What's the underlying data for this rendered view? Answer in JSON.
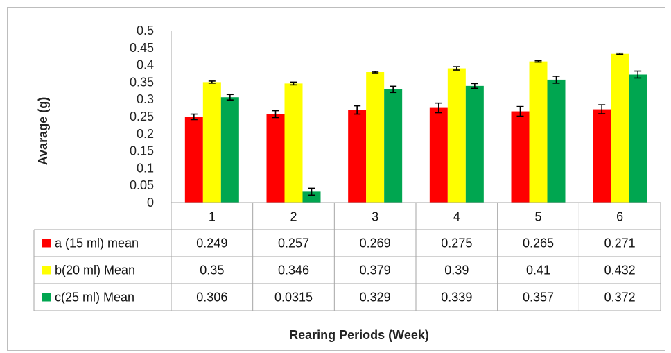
{
  "chart_data": {
    "type": "bar",
    "title": "",
    "xlabel": "Rearing Periods (Week)",
    "ylabel": "Avarage (g)",
    "ylim": [
      0,
      0.5
    ],
    "yticks": [
      "0",
      "0.05",
      "0.1",
      "0.15",
      "0.2",
      "0.25",
      "0.3",
      "0.35",
      "0.4",
      "0.45",
      "0.5"
    ],
    "grid": false,
    "legend": "data-table",
    "categories": [
      "1",
      "2",
      "3",
      "4",
      "5",
      "6"
    ],
    "series": [
      {
        "name": "a (15 ml) mean",
        "color": "#ff0000",
        "values": [
          0.249,
          0.257,
          0.269,
          0.275,
          0.265,
          0.271
        ],
        "labels": [
          "0.249",
          "0.257",
          "0.269",
          "0.275",
          "0.265",
          "0.271"
        ],
        "errors": [
          0.008,
          0.01,
          0.012,
          0.014,
          0.014,
          0.013
        ]
      },
      {
        "name": "b(20 ml)  Mean",
        "color": "#ffff00",
        "values": [
          0.35,
          0.346,
          0.379,
          0.39,
          0.41,
          0.432
        ],
        "labels": [
          "0.35",
          "0.346",
          "0.379",
          "0.39",
          "0.41",
          "0.432"
        ],
        "errors": [
          0.003,
          0.004,
          0.002,
          0.005,
          0.002,
          0.002
        ]
      },
      {
        "name": "c(25 ml) Mean",
        "color": "#00a650",
        "values": [
          0.306,
          0.0315,
          0.329,
          0.339,
          0.357,
          0.372
        ],
        "labels": [
          "0.306",
          "0.0315",
          "0.329",
          "0.339",
          "0.357",
          "0.372"
        ],
        "errors": [
          0.008,
          0.01,
          0.009,
          0.007,
          0.01,
          0.01
        ]
      }
    ]
  }
}
